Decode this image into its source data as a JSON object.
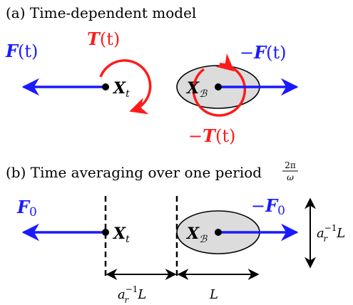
{
  "colors": {
    "force": "#1a1aff",
    "torque": "#ff1a1a",
    "body_fill": "#dcdcdc",
    "ink": "#000000"
  },
  "panel_a": {
    "caption": "(a) Time-dependent model",
    "force_label": {
      "bold": "F",
      "rest": "(t)"
    },
    "torque_label": {
      "bold": "T",
      "rest": "(t)"
    },
    "neg_force_label": {
      "sign": "−",
      "bold": "F",
      "rest": "(t)"
    },
    "neg_torque_label": {
      "sign": "−",
      "bold": "T",
      "rest": "(t)"
    },
    "point_left": {
      "bold": "X",
      "sub": "t"
    },
    "point_right": {
      "bold": "X",
      "sub": "ℬ"
    }
  },
  "panel_b": {
    "caption": "(b) Time averaging over one period",
    "period_fraction": {
      "num": "2π",
      "den": "ω"
    },
    "force_label": {
      "bold": "F",
      "sub": "0"
    },
    "neg_force_label": {
      "sign": "−",
      "bold": "F",
      "sub": "0"
    },
    "point_left": {
      "bold": "X",
      "sub": "t"
    },
    "point_right": {
      "bold": "X",
      "sub": "ℬ"
    },
    "dim_left": {
      "base": "a",
      "sup": "−1",
      "sub": "r",
      "tail": "L"
    },
    "dim_right": {
      "text": "L"
    },
    "dim_vertical": {
      "base": "a",
      "sup": "−1",
      "sub": "r",
      "tail": "L"
    }
  }
}
